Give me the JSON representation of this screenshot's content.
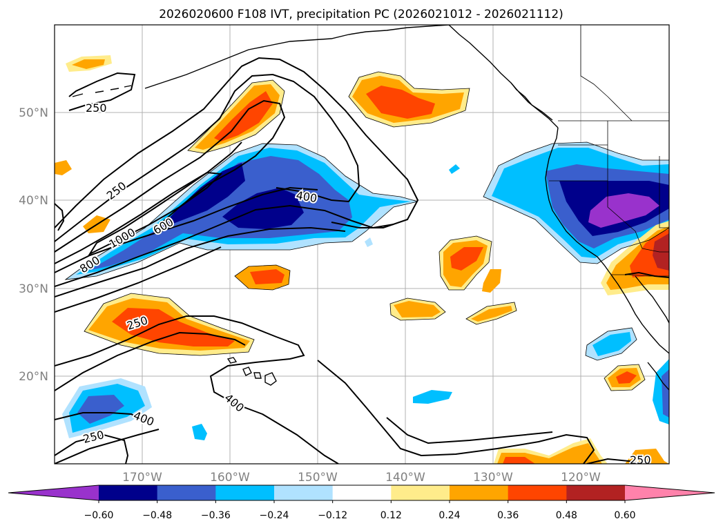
{
  "title": "2026020600 F108 IVT, precipitation PC (2026021012 - 2026021112)",
  "map": {
    "lat_labels": [
      "50°N",
      "40°N",
      "30°N",
      "20°N"
    ],
    "lon_labels": [
      "170°W",
      "160°W",
      "150°W",
      "140°W",
      "130°W",
      "120°W"
    ],
    "extent": {
      "lon": [
        -180,
        -110
      ],
      "lat": [
        10,
        60
      ]
    },
    "gridlines": true,
    "contour_labels": {
      "c250a": "250",
      "c250b": "250",
      "c250c": "250",
      "c250d": "250",
      "c250e": "250",
      "c400a": "400",
      "c400b": "400",
      "c400c": "400",
      "c600": "600",
      "c800": "800",
      "c1000": "1000"
    }
  },
  "colorbar": {
    "levels": [
      "−0.60",
      "−0.48",
      "−0.36",
      "−0.24",
      "−0.12",
      "0.12",
      "0.24",
      "0.36",
      "0.48",
      "0.60"
    ],
    "colors": [
      "#9932cc",
      "#00008b",
      "#3a5fcd",
      "#00bfff",
      "#b0e2ff",
      "#ffffff",
      "#ffec8b",
      "#ffa500",
      "#ff4500",
      "#b22222",
      "#ff82ab"
    ],
    "extend": "both"
  },
  "colors": {
    "neg_strong": "#00008b",
    "neg_mid": "#3a5fcd",
    "neg_light": "#00bfff",
    "neg_faint": "#b0e2ff",
    "purple": "#9932cc",
    "pos_faint": "#ffec8b",
    "pos_light": "#ffa500",
    "pos_mid": "#ff4500",
    "pos_strong": "#b22222",
    "pink": "#ff82ab"
  }
}
